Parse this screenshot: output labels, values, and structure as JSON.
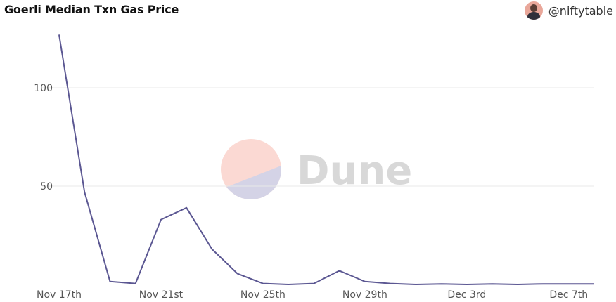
{
  "header": {
    "title": "Goerli Median Txn Gas Price",
    "author": "@niftytable"
  },
  "watermark": {
    "text": "Dune"
  },
  "colors": {
    "line": "#5b5792",
    "grid": "#e8e8e8",
    "watermark_top": "#fbd9d3",
    "watermark_bottom": "#d4d3e6"
  },
  "chart_data": {
    "type": "line",
    "title": "Goerli Median Txn Gas Price",
    "xlabel": "",
    "ylabel": "",
    "ylim": [
      0,
      125
    ],
    "yticks": [
      50,
      100
    ],
    "grid": true,
    "x": [
      "2022-11-17",
      "2022-11-18",
      "2022-11-19",
      "2022-11-20",
      "2022-11-21",
      "2022-11-22",
      "2022-11-23",
      "2022-11-24",
      "2022-11-25",
      "2022-11-26",
      "2022-11-27",
      "2022-11-28",
      "2022-11-29",
      "2022-11-30",
      "2022-12-01",
      "2022-12-02",
      "2022-12-03",
      "2022-12-04",
      "2022-12-05",
      "2022-12-06",
      "2022-12-07",
      "2022-12-08"
    ],
    "xticks": [
      {
        "x": "2022-11-17",
        "label": "Nov 17th"
      },
      {
        "x": "2022-11-21",
        "label": "Nov 21st"
      },
      {
        "x": "2022-11-25",
        "label": "Nov 25th"
      },
      {
        "x": "2022-11-29",
        "label": "Nov 29th"
      },
      {
        "x": "2022-12-03",
        "label": "Dec 3rd"
      },
      {
        "x": "2022-12-07",
        "label": "Dec 7th"
      }
    ],
    "series": [
      {
        "values": [
          127,
          47,
          1.5,
          0.5,
          33,
          39,
          18,
          5.5,
          0.5,
          0,
          0.5,
          7,
          1.5,
          0.5,
          0,
          0.3,
          0,
          0.3,
          0,
          0.3,
          0.3,
          0.3
        ]
      }
    ]
  }
}
